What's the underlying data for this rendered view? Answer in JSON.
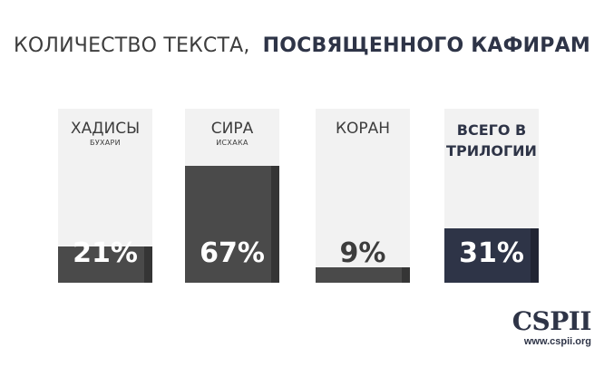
{
  "title": {
    "light": "КОЛИЧЕСТВО ТЕКСТА,",
    "bold": "ПОСВЯЩЕННОГО КАФИРАМ"
  },
  "colors": {
    "bar_gray": "#4a4a4a",
    "bar_navy": "#2e3447",
    "card_bg": "#f2f2f2"
  },
  "chart_data": {
    "type": "bar",
    "title": "КОЛИЧЕСТВО ТЕКСТА, ПОСВЯЩЕННОГО КАФИРАМ",
    "categories": [
      "ХАДИСЫ БУХАРИ",
      "СИРА ИСХАКА",
      "КОРАН",
      "ВСЕГО В ТРИЛОГИИ"
    ],
    "values": [
      21,
      67,
      9,
      31
    ],
    "unit": "%",
    "ylim": [
      0,
      100
    ],
    "bars": [
      {
        "name": "ХАДИСЫ",
        "sub": "БУХАРИ",
        "value": 21,
        "label": "21%",
        "color": "#4a4a4a"
      },
      {
        "name": "СИРА",
        "sub": "ИСХАКА",
        "value": 67,
        "label": "67%",
        "color": "#4a4a4a"
      },
      {
        "name": "КОРАН",
        "sub": "",
        "value": 9,
        "label": "9%",
        "color": "#4a4a4a"
      },
      {
        "name": "ВСЕГО В ТРИЛОГИИ",
        "sub": "",
        "value": 31,
        "label": "31%",
        "color": "#2e3447"
      }
    ]
  },
  "logo": {
    "brand": "CSPII",
    "url": "www.cspii.org"
  }
}
